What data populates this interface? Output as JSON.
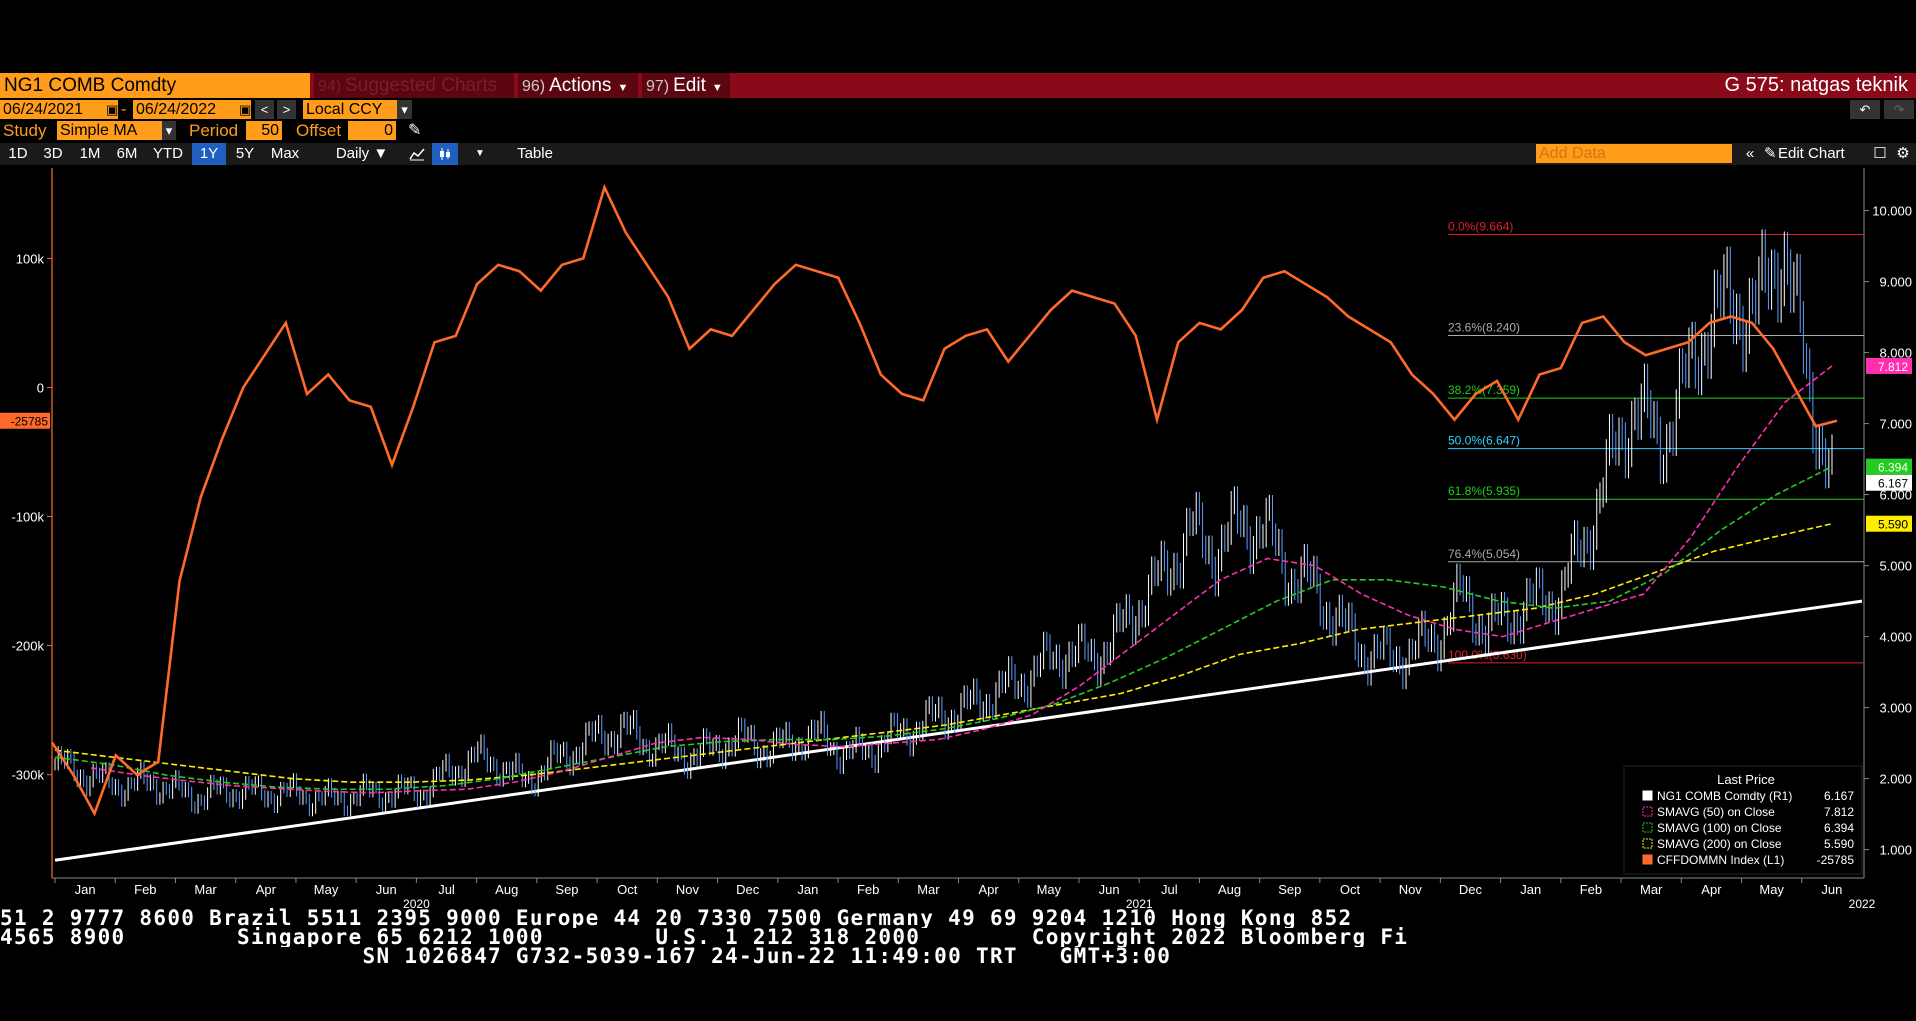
{
  "header": {
    "security": "NG1 COMB Comdty",
    "suggested": {
      "num": "94)",
      "label": "Suggested Charts"
    },
    "actions": {
      "num": "96)",
      "label": "Actions"
    },
    "edit": {
      "num": "97)",
      "label": "Edit"
    },
    "chart_name": "G 575: natgas teknik"
  },
  "range": {
    "start": "06/24/2021",
    "separator": "-",
    "end": "06/24/2022",
    "currency": "Local CCY"
  },
  "study": {
    "label": "Study",
    "type": "Simple MA",
    "period_label": "Period",
    "period": "50",
    "offset_label": "Offset",
    "offset": "0"
  },
  "toolbar": {
    "periods": [
      "1D",
      "3D",
      "1M",
      "6M",
      "YTD",
      "1Y",
      "5Y",
      "Max"
    ],
    "active_period": "1Y",
    "frequency": "Daily",
    "table_label": "Table",
    "add_data_placeholder": "Add Data",
    "edit_chart_label": "Edit Chart"
  },
  "colors": {
    "orange": "#ff6a2a",
    "price": "#5aa0ff",
    "sma50": "#ff2fae",
    "sma100": "#22cc22",
    "sma200": "#ffee00",
    "trend": "#ffffff",
    "fib_red": "#e0202a",
    "fib_green": "#22cc22",
    "fib_cyan": "#2ad4ff",
    "fib_grey": "#aaaaaa"
  },
  "chart_data": {
    "type": "line",
    "right_axis": {
      "range": [
        0.6,
        10.6
      ],
      "ticks": [
        "1.000",
        "2.000",
        "3.000",
        "4.000",
        "5.000",
        "6.000",
        "7.000",
        "8.000",
        "9.000",
        "10.000"
      ]
    },
    "left_axis": {
      "range": [
        -380000,
        170000
      ],
      "ticks": [
        "-300k",
        "-200k",
        "-100k",
        "0",
        "100k"
      ]
    },
    "x_axis": {
      "months": [
        "Jan",
        "Feb",
        "Mar",
        "Apr",
        "May",
        "Jun",
        "Jul",
        "Aug",
        "Sep",
        "Oct",
        "Nov",
        "Dec",
        "Jan",
        "Feb",
        "Mar",
        "Apr",
        "May",
        "Jun",
        "Jul",
        "Aug",
        "Sep",
        "Oct",
        "Nov",
        "Dec",
        "Jan",
        "Feb",
        "Mar",
        "Apr",
        "May",
        "Jun"
      ],
      "years": [
        "2020",
        "2021",
        "2022"
      ]
    },
    "price_close": [
      2.2,
      2.1,
      1.95,
      1.9,
      1.95,
      1.8,
      1.75,
      1.85,
      1.8,
      1.8,
      1.78,
      1.7,
      1.75,
      1.8,
      1.8,
      1.85,
      2.1,
      2.3,
      2.2,
      1.95,
      2.2,
      2.4,
      2.6,
      2.7,
      2.5,
      2.4,
      2.3,
      2.5,
      2.55,
      2.4,
      2.55,
      2.6,
      2.35,
      2.4,
      2.6,
      2.75,
      2.9,
      3.0,
      3.2,
      3.35,
      3.6,
      3.8,
      3.7,
      4.0,
      4.5,
      4.9,
      5.5,
      5.2,
      5.6,
      5.5,
      4.9,
      4.7,
      4.2,
      3.8,
      3.7,
      3.8,
      4.0,
      4.6,
      4.1,
      4.3,
      4.5,
      4.6,
      5.4,
      6.4,
      7.3,
      6.7,
      7.5,
      8.5,
      8.7,
      8.6,
      9.6,
      7.6,
      6.167
    ],
    "price_x_range": [
      "Jan 2020",
      "Jun 2022"
    ],
    "sma50": [
      2.15,
      2.05,
      1.97,
      1.9,
      1.86,
      1.82,
      1.8,
      1.83,
      1.85,
      1.95,
      2.1,
      2.3,
      2.5,
      2.58,
      2.55,
      2.48,
      2.45,
      2.5,
      2.55,
      2.7,
      2.9,
      3.3,
      3.8,
      4.3,
      4.8,
      5.1,
      5.0,
      4.6,
      4.3,
      4.1,
      4.0,
      4.2,
      4.4,
      4.6,
      5.4,
      6.4,
      7.3,
      7.812
    ],
    "sma100": [
      2.3,
      2.2,
      2.05,
      1.95,
      1.88,
      1.85,
      1.85,
      1.9,
      2.0,
      2.15,
      2.3,
      2.45,
      2.52,
      2.55,
      2.55,
      2.6,
      2.7,
      2.85,
      3.05,
      3.35,
      3.7,
      4.1,
      4.5,
      4.8,
      4.8,
      4.7,
      4.5,
      4.4,
      4.5,
      4.9,
      5.5,
      6.0,
      6.394
    ],
    "sma200": [
      2.4,
      2.3,
      2.2,
      2.1,
      2.0,
      1.95,
      1.95,
      1.98,
      2.05,
      2.15,
      2.25,
      2.35,
      2.45,
      2.55,
      2.65,
      2.75,
      2.9,
      3.05,
      3.2,
      3.45,
      3.75,
      3.9,
      4.1,
      4.2,
      4.3,
      4.4,
      4.6,
      4.9,
      5.2,
      5.4,
      5.59
    ],
    "trendline": [
      [
        0,
        0.85
      ],
      [
        1,
        4.5
      ]
    ],
    "cftc_net": [
      -275000,
      -300000,
      -330000,
      -285000,
      -300000,
      -290000,
      -150000,
      -85000,
      -40000,
      0,
      25000,
      50000,
      -5000,
      10000,
      -10000,
      -15000,
      -60000,
      -15000,
      35000,
      40000,
      80000,
      95000,
      90000,
      75000,
      95000,
      100000,
      155000,
      120000,
      95000,
      70000,
      30000,
      45000,
      40000,
      60000,
      80000,
      95000,
      90000,
      85000,
      50000,
      10000,
      -5000,
      -10000,
      30000,
      40000,
      45000,
      20000,
      40000,
      60000,
      75000,
      70000,
      65000,
      40000,
      -25000,
      35000,
      50000,
      45000,
      60000,
      85000,
      90000,
      80000,
      70000,
      55000,
      45000,
      35000,
      10000,
      -5000,
      -25000,
      -5000,
      5000,
      -25000,
      10000,
      15000,
      50000,
      55000,
      35000,
      25000,
      30000,
      35000,
      50000,
      55000,
      50000,
      30000,
      0,
      -30000,
      -25785
    ],
    "fibonacci": [
      {
        "label": "0.0%(9.664)",
        "value": 9.664,
        "color": "fib_red"
      },
      {
        "label": "23.6%(8.240)",
        "value": 8.24,
        "color": "fib_grey"
      },
      {
        "label": "38.2%(7.359)",
        "value": 7.359,
        "color": "fib_green"
      },
      {
        "label": "50.0%(6.647)",
        "value": 6.647,
        "color": "fib_cyan"
      },
      {
        "label": "61.8%(5.935)",
        "value": 5.935,
        "color": "fib_green"
      },
      {
        "label": "76.4%(5.054)",
        "value": 5.054,
        "color": "fib_grey"
      },
      {
        "label": "100.0%(3.630)",
        "value": 3.63,
        "color": "fib_red"
      }
    ],
    "last_value_tags": [
      {
        "text": "7.812",
        "value": 7.812,
        "bg": "#ff2fae",
        "fg": "#fff"
      },
      {
        "text": "6.394",
        "value": 6.394,
        "bg": "#22cc22",
        "fg": "#fff"
      },
      {
        "text": "6.167",
        "value": 6.167,
        "bg": "#ffffff",
        "fg": "#000"
      },
      {
        "text": "5.590",
        "value": 5.59,
        "bg": "#ffee00",
        "fg": "#000"
      }
    ],
    "left_tag": {
      "text": "-25785",
      "value": -25785
    },
    "legend": {
      "title": "Last Price",
      "items": [
        {
          "name": "NG1 COMB Comdty  (R1)",
          "value": "6.167",
          "swatch": "#ffffff",
          "style": "solid"
        },
        {
          "name": "SMAVG (50)  on Close",
          "value": "7.812",
          "swatch": "#ff2fae",
          "style": "dash"
        },
        {
          "name": "SMAVG (100)  on Close",
          "value": "6.394",
          "swatch": "#22cc22",
          "style": "dash"
        },
        {
          "name": "SMAVG (200)  on Close",
          "value": "5.590",
          "swatch": "#ffee00",
          "style": "dash"
        },
        {
          "name": "CFFDOMMN Index  (L1)",
          "value": "-25785",
          "swatch": "#ff6a2a",
          "style": "solid"
        }
      ]
    }
  },
  "tape": {
    "line1": "51 2 9777 8600 Brazil 5511 2395 9000 Europe 44 20 7330 7500 Germany 49 69 9204 1210 Hong Kong 852",
    "line2": "4565 8900        Singapore 65 6212 1000        U.S. 1 212 318 2000        Copyright 2022 Bloomberg Fi",
    "line3": "                          SN 1026847 G732-5039-167 24-Jun-22 11:49:00 TRT   GMT+3:00"
  }
}
